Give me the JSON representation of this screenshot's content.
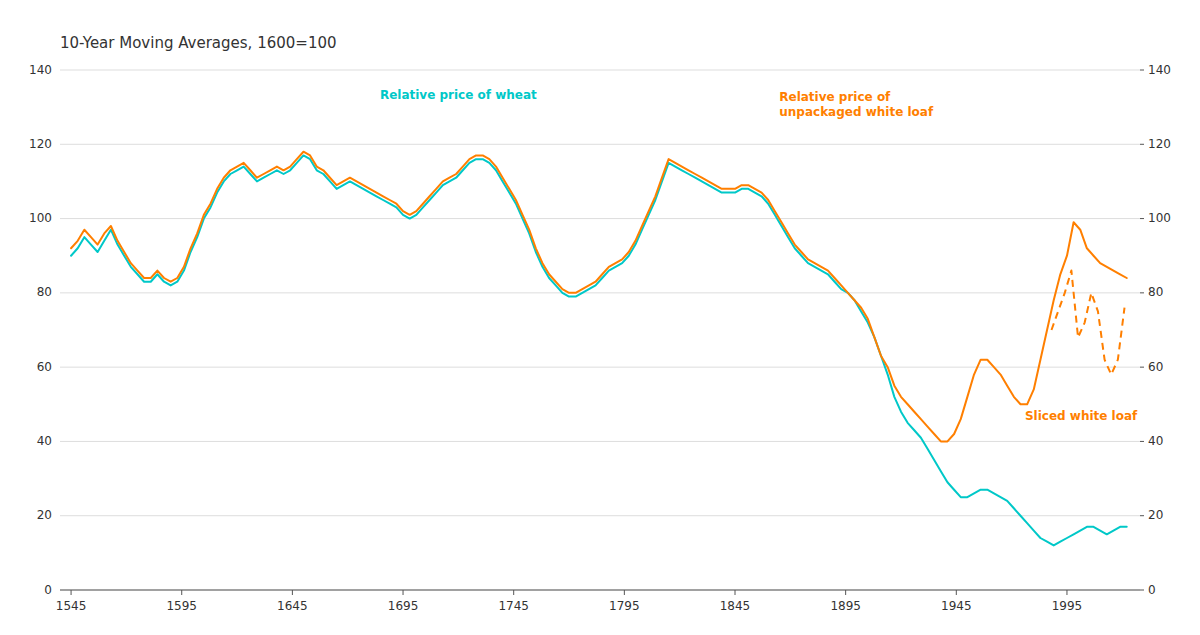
{
  "chart_data": {
    "type": "line",
    "title": "10-Year Moving Averages,  1600=100",
    "xlim": [
      1540,
      2028
    ],
    "xticks": [
      1545,
      1595,
      1645,
      1695,
      1745,
      1795,
      1845,
      1895,
      1945,
      1995
    ],
    "ylim": [
      0,
      140
    ],
    "yticks": [
      0,
      20,
      40,
      60,
      80,
      100,
      120,
      140
    ],
    "y2lim": [
      0,
      140
    ],
    "y2ticks": [
      0,
      20,
      40,
      60,
      80,
      100,
      120,
      140
    ],
    "grid": true,
    "series": [
      {
        "color": "#00c8c8",
        "line_style": "solid",
        "x": [
          1545,
          1548,
          1551,
          1554,
          1557,
          1560,
          1563,
          1566,
          1569,
          1572,
          1575,
          1578,
          1581,
          1584,
          1587,
          1590,
          1593,
          1596,
          1599,
          1602,
          1605,
          1608,
          1611,
          1614,
          1617,
          1620,
          1623,
          1626,
          1629,
          1632,
          1635,
          1638,
          1641,
          1644,
          1647,
          1650,
          1653,
          1656,
          1659,
          1662,
          1665,
          1668,
          1671,
          1674,
          1677,
          1680,
          1683,
          1686,
          1689,
          1692,
          1695,
          1698,
          1701,
          1704,
          1707,
          1710,
          1713,
          1716,
          1719,
          1722,
          1725,
          1728,
          1731,
          1734,
          1737,
          1740,
          1743,
          1746,
          1749,
          1752,
          1755,
          1758,
          1761,
          1764,
          1767,
          1770,
          1773,
          1776,
          1779,
          1782,
          1785,
          1788,
          1791,
          1794,
          1797,
          1800,
          1803,
          1806,
          1809,
          1812,
          1815,
          1818,
          1821,
          1824,
          1827,
          1830,
          1833,
          1836,
          1839,
          1842,
          1845,
          1848,
          1851,
          1854,
          1857,
          1860,
          1863,
          1866,
          1869,
          1872,
          1875,
          1878,
          1881,
          1884,
          1887,
          1890,
          1893,
          1896,
          1899,
          1902,
          1905,
          1908,
          1911,
          1914,
          1917,
          1920,
          1923,
          1926,
          1929,
          1932,
          1935,
          1938,
          1941,
          1944,
          1947,
          1950,
          1953,
          1956,
          1959,
          1962,
          1965,
          1968,
          1971,
          1974,
          1977,
          1980,
          1983,
          1986,
          1989,
          1992,
          1995,
          1998,
          2001,
          2004,
          2007,
          2010,
          2013,
          2016,
          2019,
          2022
        ],
        "values": [
          90,
          92,
          95,
          93,
          91,
          94,
          97,
          93,
          90,
          87,
          85,
          83,
          83,
          85,
          83,
          82,
          83,
          86,
          91,
          95,
          100,
          103,
          107,
          110,
          112,
          113,
          114,
          112,
          110,
          111,
          112,
          113,
          112,
          113,
          115,
          117,
          116,
          113,
          112,
          110,
          108,
          109,
          110,
          109,
          108,
          107,
          106,
          105,
          104,
          103,
          101,
          100,
          101,
          103,
          105,
          107,
          109,
          110,
          111,
          113,
          115,
          116,
          116,
          115,
          113,
          110,
          107,
          104,
          100,
          96,
          91,
          87,
          84,
          82,
          80,
          79,
          79,
          80,
          81,
          82,
          84,
          86,
          87,
          88,
          90,
          93,
          97,
          101,
          105,
          110,
          115,
          114,
          113,
          112,
          111,
          110,
          109,
          108,
          107,
          107,
          107,
          108,
          108,
          107,
          106,
          104,
          101,
          98,
          95,
          92,
          90,
          88,
          87,
          86,
          85,
          83,
          81,
          80,
          78,
          75,
          72,
          68,
          63,
          58,
          52,
          48,
          45,
          43,
          41,
          38,
          35,
          32,
          29,
          27,
          25,
          25,
          26,
          27,
          27,
          26,
          25,
          24,
          22,
          20,
          18,
          16,
          14,
          13,
          12,
          13,
          14,
          15,
          16,
          17,
          17,
          16,
          15,
          16,
          17,
          17
        ]
      },
      {
        "color": "#ff7f00",
        "line_style": "solid",
        "x": [
          1545,
          1548,
          1551,
          1554,
          1557,
          1560,
          1563,
          1566,
          1569,
          1572,
          1575,
          1578,
          1581,
          1584,
          1587,
          1590,
          1593,
          1596,
          1599,
          1602,
          1605,
          1608,
          1611,
          1614,
          1617,
          1620,
          1623,
          1626,
          1629,
          1632,
          1635,
          1638,
          1641,
          1644,
          1647,
          1650,
          1653,
          1656,
          1659,
          1662,
          1665,
          1668,
          1671,
          1674,
          1677,
          1680,
          1683,
          1686,
          1689,
          1692,
          1695,
          1698,
          1701,
          1704,
          1707,
          1710,
          1713,
          1716,
          1719,
          1722,
          1725,
          1728,
          1731,
          1734,
          1737,
          1740,
          1743,
          1746,
          1749,
          1752,
          1755,
          1758,
          1761,
          1764,
          1767,
          1770,
          1773,
          1776,
          1779,
          1782,
          1785,
          1788,
          1791,
          1794,
          1797,
          1800,
          1803,
          1806,
          1809,
          1812,
          1815,
          1818,
          1821,
          1824,
          1827,
          1830,
          1833,
          1836,
          1839,
          1842,
          1845,
          1848,
          1851,
          1854,
          1857,
          1860,
          1863,
          1866,
          1869,
          1872,
          1875,
          1878,
          1881,
          1884,
          1887,
          1890,
          1893,
          1896,
          1899,
          1902,
          1905,
          1908,
          1911,
          1914,
          1917,
          1920,
          1923,
          1926,
          1929,
          1932,
          1935,
          1938,
          1941,
          1944,
          1947,
          1950,
          1953,
          1956,
          1959,
          1962,
          1965,
          1968,
          1971,
          1974,
          1977,
          1980,
          1983,
          1986,
          1989,
          1992,
          1995,
          1998,
          2001,
          2004,
          2007,
          2010,
          2013,
          2016,
          2019,
          2022
        ],
        "values": [
          92,
          94,
          97,
          95,
          93,
          96,
          98,
          94,
          91,
          88,
          86,
          84,
          84,
          86,
          84,
          83,
          84,
          87,
          92,
          96,
          101,
          104,
          108,
          111,
          113,
          114,
          115,
          113,
          111,
          112,
          113,
          114,
          113,
          114,
          116,
          118,
          117,
          114,
          113,
          111,
          109,
          110,
          111,
          110,
          109,
          108,
          107,
          106,
          105,
          104,
          102,
          101,
          102,
          104,
          106,
          108,
          110,
          111,
          112,
          114,
          116,
          117,
          117,
          116,
          114,
          111,
          108,
          105,
          101,
          97,
          92,
          88,
          85,
          83,
          81,
          80,
          80,
          81,
          82,
          83,
          85,
          87,
          88,
          89,
          91,
          94,
          98,
          102,
          106,
          111,
          116,
          115,
          114,
          113,
          112,
          111,
          110,
          109,
          108,
          108,
          108,
          109,
          109,
          108,
          107,
          105,
          102,
          99,
          96,
          93,
          91,
          89,
          88,
          87,
          86,
          84,
          82,
          80,
          78,
          76,
          73,
          68,
          63,
          60,
          55,
          52,
          50,
          48,
          46,
          44,
          42,
          40,
          40,
          42,
          46,
          52,
          58,
          62,
          62,
          60,
          58,
          55,
          52,
          50,
          50,
          54,
          62,
          70,
          78,
          85,
          90,
          99,
          97,
          92,
          90,
          88,
          87,
          86,
          85,
          84
        ]
      },
      {
        "color": "#ff7f00",
        "line_style": "dashed",
        "x": [
          1988,
          1991,
          1994,
          1997,
          2000,
          2003,
          2006,
          2009,
          2012,
          2015,
          2018,
          2021
        ],
        "values": [
          70,
          75,
          80,
          86,
          68,
          72,
          80,
          75,
          62,
          58,
          62,
          76
        ]
      }
    ],
    "annotations": [
      {
        "text": "Relative price of wheat",
        "x": 1720,
        "y": 131,
        "color": "#00c8c8"
      },
      {
        "text": "Relative price of\nunpackaged white loaf",
        "x": 1865,
        "y": 135,
        "color": "#ff7f00"
      },
      {
        "text": "Sliced white loaf",
        "x": 1976,
        "y": 47,
        "color": "#ff7f00"
      }
    ]
  }
}
